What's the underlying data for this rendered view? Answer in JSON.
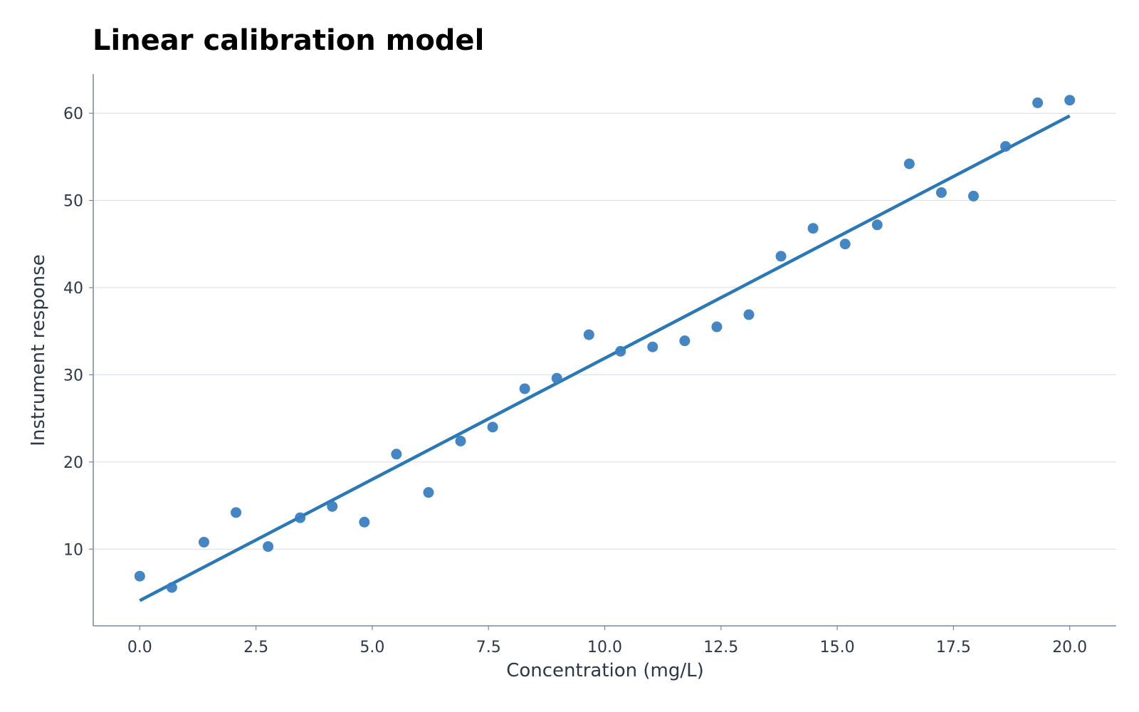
{
  "chart_data": {
    "type": "scatter",
    "title": "Linear calibration model",
    "xlabel": "Concentration (mg/L)",
    "ylabel": "Instrument response",
    "xlim": [
      -1.0,
      21.0
    ],
    "ylim": [
      1.2,
      64.5
    ],
    "x_ticks": [
      "0.0",
      "2.5",
      "5.0",
      "7.5",
      "10.0",
      "12.5",
      "15.0",
      "17.5",
      "20.0"
    ],
    "y_ticks": [
      "10",
      "20",
      "30",
      "40",
      "50",
      "60"
    ],
    "grid": "horizontal",
    "colors": {
      "points": "#3a7ebf",
      "fit_line": "#2a78b6"
    },
    "points": {
      "x": [
        0.0,
        0.69,
        1.38,
        2.07,
        2.76,
        3.45,
        4.14,
        4.83,
        5.52,
        6.21,
        6.9,
        7.59,
        8.28,
        8.97,
        9.66,
        10.34,
        11.03,
        11.72,
        12.41,
        13.1,
        13.79,
        14.48,
        15.17,
        15.86,
        16.55,
        17.24,
        17.93,
        18.62,
        19.31,
        20.0
      ],
      "y": [
        6.9,
        5.6,
        10.8,
        14.2,
        10.3,
        13.6,
        14.9,
        13.1,
        20.9,
        16.5,
        22.4,
        24.0,
        28.4,
        29.6,
        34.6,
        32.7,
        33.2,
        33.9,
        35.5,
        36.9,
        43.6,
        46.8,
        45.0,
        47.2,
        54.2,
        50.9,
        50.5,
        56.2,
        61.2,
        61.5
      ]
    },
    "fit_line": {
      "x": [
        0.0,
        20.0
      ],
      "y": [
        4.1,
        59.7
      ]
    }
  }
}
